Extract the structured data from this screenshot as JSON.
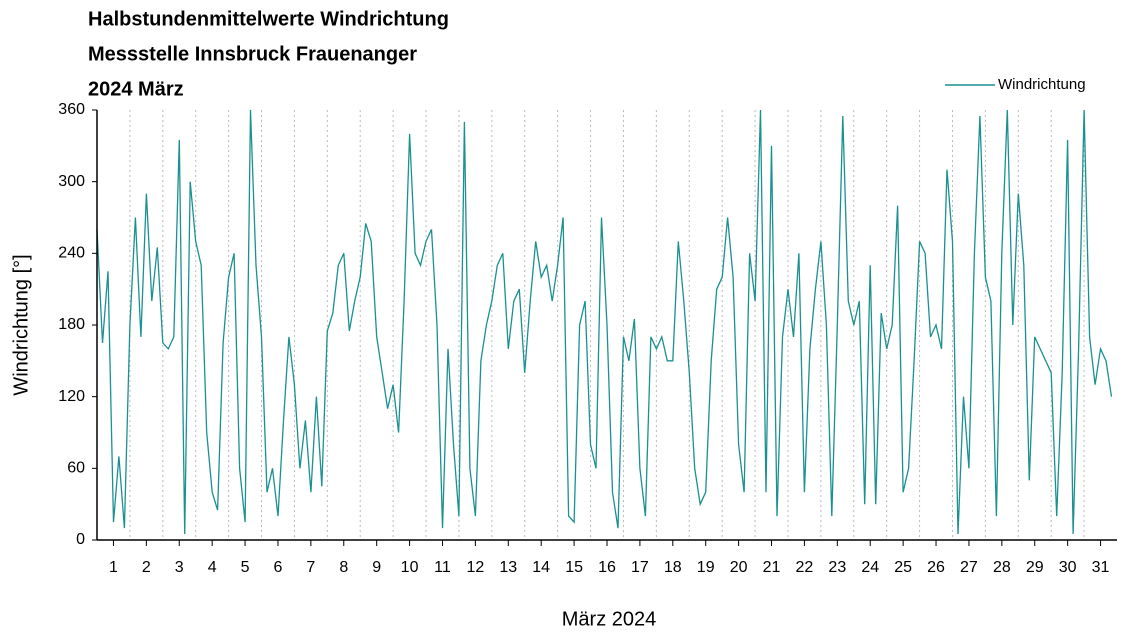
{
  "chart_data": {
    "type": "line",
    "title": [
      "Halbstundenmittelwerte Windrichtung",
      "Messstelle Innsbruck Frauenanger",
      "2024 März"
    ],
    "xlabel": "März 2024",
    "ylabel": "Windrichtung [°]",
    "x": [
      0,
      4,
      8,
      12,
      16,
      20,
      24,
      28,
      32,
      36,
      40,
      44,
      48,
      52,
      56,
      60,
      64,
      68,
      72,
      76,
      80,
      84,
      88,
      92,
      96,
      100,
      104,
      108,
      112,
      116,
      120,
      124,
      128,
      132,
      136,
      140,
      144,
      148,
      152,
      156,
      160,
      164,
      168,
      172,
      176,
      180,
      184,
      188,
      192,
      196,
      200,
      204,
      208,
      212,
      216,
      220,
      224,
      228,
      232,
      236,
      240,
      244,
      248,
      252,
      256,
      260,
      264,
      268,
      272,
      276,
      280,
      284,
      288,
      292,
      296,
      300,
      304,
      308,
      312,
      316,
      320,
      324,
      328,
      332,
      336,
      340,
      344,
      348,
      352,
      356,
      360,
      364,
      368,
      372,
      376,
      380,
      384,
      388,
      392,
      396,
      400,
      404,
      408,
      412,
      416,
      420,
      424,
      428,
      432,
      436,
      440,
      444,
      448,
      452,
      456,
      460,
      464,
      468,
      472,
      476,
      480,
      484,
      488,
      492,
      496,
      500,
      504,
      508,
      512,
      516,
      520,
      524,
      528,
      532,
      536,
      540,
      544,
      548,
      552,
      556,
      560,
      564,
      568,
      572,
      576,
      580,
      584,
      588,
      592,
      596,
      600,
      604,
      608,
      612,
      616,
      620,
      624,
      628,
      632,
      636,
      640,
      644,
      648,
      652,
      656,
      660,
      664,
      668,
      672,
      676,
      680,
      684,
      688,
      692,
      696,
      700,
      704,
      708,
      712,
      716,
      720,
      724,
      728,
      732,
      736,
      740
    ],
    "series": [
      {
        "name": "Windrichtung",
        "color": "#1a9090",
        "values": [
          260,
          165,
          225,
          15,
          70,
          10,
          180,
          270,
          170,
          290,
          200,
          245,
          165,
          160,
          170,
          335,
          5,
          300,
          250,
          230,
          90,
          40,
          25,
          165,
          220,
          240,
          60,
          15,
          360,
          230,
          170,
          40,
          60,
          20,
          100,
          170,
          130,
          60,
          100,
          40,
          120,
          45,
          175,
          190,
          230,
          240,
          175,
          200,
          220,
          265,
          250,
          170,
          140,
          110,
          130,
          90,
          200,
          340,
          240,
          230,
          250,
          260,
          180,
          10,
          160,
          80,
          20,
          350,
          60,
          20,
          150,
          180,
          200,
          230,
          240,
          160,
          200,
          210,
          140,
          200,
          250,
          220,
          230,
          200,
          230,
          270,
          20,
          15,
          180,
          200,
          80,
          60,
          270,
          180,
          40,
          10,
          170,
          150,
          185,
          60,
          20,
          170,
          160,
          170,
          150,
          150,
          250,
          200,
          140,
          60,
          30,
          40,
          150,
          210,
          220,
          270,
          220,
          80,
          40,
          240,
          200,
          360,
          40,
          330,
          20,
          170,
          210,
          170,
          240,
          40,
          160,
          210,
          250,
          180,
          20,
          180,
          355,
          200,
          180,
          200,
          30,
          230,
          30,
          190,
          160,
          180,
          280,
          40,
          60,
          150,
          250,
          240,
          170,
          180,
          160,
          310,
          250,
          5,
          120,
          60,
          240,
          355,
          220,
          200,
          20,
          240,
          360,
          180,
          290,
          230,
          50,
          170,
          160,
          150,
          140,
          20,
          140,
          335,
          5,
          160,
          360,
          170,
          130,
          160,
          150,
          120
        ]
      }
    ],
    "xlim": [
      0,
      744
    ],
    "xticks": [
      {
        "value": 12,
        "label": "1"
      },
      {
        "value": 36,
        "label": "2"
      },
      {
        "value": 60,
        "label": "3"
      },
      {
        "value": 84,
        "label": "4"
      },
      {
        "value": 108,
        "label": "5"
      },
      {
        "value": 132,
        "label": "6"
      },
      {
        "value": 156,
        "label": "7"
      },
      {
        "value": 180,
        "label": "8"
      },
      {
        "value": 204,
        "label": "9"
      },
      {
        "value": 228,
        "label": "10"
      },
      {
        "value": 252,
        "label": "11"
      },
      {
        "value": 276,
        "label": "12"
      },
      {
        "value": 300,
        "label": "13"
      },
      {
        "value": 324,
        "label": "14"
      },
      {
        "value": 348,
        "label": "15"
      },
      {
        "value": 372,
        "label": "16"
      },
      {
        "value": 396,
        "label": "17"
      },
      {
        "value": 420,
        "label": "18"
      },
      {
        "value": 444,
        "label": "19"
      },
      {
        "value": 468,
        "label": "20"
      },
      {
        "value": 492,
        "label": "21"
      },
      {
        "value": 516,
        "label": "22"
      },
      {
        "value": 540,
        "label": "23"
      },
      {
        "value": 564,
        "label": "24"
      },
      {
        "value": 588,
        "label": "25"
      },
      {
        "value": 612,
        "label": "26"
      },
      {
        "value": 636,
        "label": "27"
      },
      {
        "value": 660,
        "label": "28"
      },
      {
        "value": 684,
        "label": "29"
      },
      {
        "value": 708,
        "label": "30"
      },
      {
        "value": 732,
        "label": "31"
      }
    ],
    "xgrid": [
      24,
      48,
      72,
      96,
      120,
      144,
      168,
      192,
      216,
      240,
      264,
      288,
      312,
      336,
      360,
      384,
      408,
      432,
      456,
      480,
      504,
      528,
      552,
      576,
      600,
      624,
      648,
      672,
      696,
      720
    ],
    "ylim": [
      0,
      360
    ],
    "yticks": [
      0,
      60,
      120,
      180,
      240,
      300,
      360
    ],
    "legend": "top-right"
  }
}
